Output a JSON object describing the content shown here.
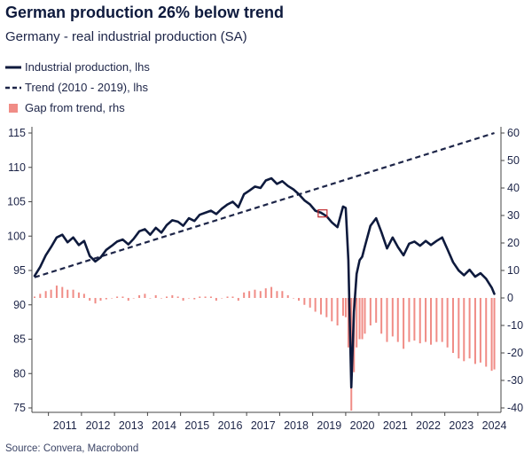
{
  "title": "German production 26% below trend",
  "subtitle": "Germany - real industrial production (SA)",
  "legend": {
    "industrial": "Industrial production, lhs",
    "trend": "Trend (2010 - 2019), lhs",
    "gap": "Gap from trend, rhs"
  },
  "source": "Source: Convera, Macrobond",
  "colors": {
    "line": "#0e1a3d",
    "trend": "#1c2447",
    "bar": "#f08c86"
  },
  "chart_data": {
    "type": "line",
    "ylim_left": [
      75,
      115
    ],
    "ylim_right": [
      -40,
      60
    ],
    "yticks_left": [
      75,
      80,
      85,
      90,
      95,
      100,
      105,
      110,
      115
    ],
    "yticks_right": [
      -40,
      -30,
      -20,
      -10,
      0,
      10,
      20,
      30,
      40,
      50,
      60
    ],
    "xticks": [
      "2011",
      "2012",
      "2013",
      "2014",
      "2015",
      "2016",
      "2017",
      "2018",
      "2019",
      "2020",
      "2021",
      "2022",
      "2023",
      "2024"
    ],
    "xlim": [
      2010.5,
      2024.7
    ],
    "trend": {
      "x": [
        2010.58,
        2024.5
      ],
      "y": [
        94.0,
        115.0
      ]
    },
    "industrial_production": {
      "x": [
        2010.58,
        2010.75,
        2010.92,
        2011.08,
        2011.25,
        2011.42,
        2011.58,
        2011.75,
        2011.92,
        2012.08,
        2012.25,
        2012.42,
        2012.58,
        2012.75,
        2012.92,
        2013.08,
        2013.25,
        2013.42,
        2013.58,
        2013.75,
        2013.92,
        2014.08,
        2014.25,
        2014.42,
        2014.58,
        2014.75,
        2014.92,
        2015.08,
        2015.25,
        2015.42,
        2015.58,
        2015.75,
        2015.92,
        2016.08,
        2016.25,
        2016.42,
        2016.58,
        2016.75,
        2016.92,
        2017.08,
        2017.25,
        2017.42,
        2017.58,
        2017.75,
        2017.92,
        2018.08,
        2018.25,
        2018.42,
        2018.58,
        2018.75,
        2018.92,
        2019.08,
        2019.25,
        2019.42,
        2019.58,
        2019.75,
        2019.92,
        2020.0,
        2020.08,
        2020.17,
        2020.25,
        2020.33,
        2020.42,
        2020.5,
        2020.58,
        2020.75,
        2020.92,
        2021.08,
        2021.25,
        2021.42,
        2021.58,
        2021.75,
        2021.92,
        2022.08,
        2022.25,
        2022.42,
        2022.58,
        2022.75,
        2022.92,
        2023.08,
        2023.25,
        2023.42,
        2023.58,
        2023.75,
        2023.92,
        2024.08,
        2024.25,
        2024.42,
        2024.5
      ],
      "y": [
        94.2,
        95.5,
        97.2,
        98.4,
        99.8,
        100.2,
        99.1,
        99.8,
        98.7,
        99.3,
        97.1,
        96.3,
        96.9,
        98.0,
        98.6,
        99.2,
        99.5,
        98.8,
        99.6,
        100.7,
        101.0,
        100.2,
        101.2,
        100.5,
        101.6,
        102.3,
        102.1,
        101.5,
        102.6,
        102.2,
        103.1,
        103.4,
        103.7,
        103.2,
        104.0,
        104.6,
        105.0,
        104.2,
        106.1,
        106.6,
        107.2,
        107.0,
        108.1,
        108.4,
        107.6,
        108.0,
        107.3,
        106.8,
        106.1,
        105.2,
        104.6,
        103.7,
        103.4,
        102.9,
        102.0,
        101.3,
        104.3,
        104.1,
        96.5,
        78.0,
        89.0,
        94.5,
        96.5,
        97.0,
        98.5,
        101.5,
        102.6,
        100.6,
        98.2,
        99.8,
        98.4,
        97.2,
        98.9,
        99.2,
        98.6,
        99.3,
        98.7,
        99.3,
        99.8,
        98.1,
        96.2,
        95.0,
        94.3,
        95.1,
        94.1,
        94.6,
        93.8,
        92.5,
        91.6
      ]
    },
    "gap_from_trend": {
      "x": [
        2010.58,
        2010.75,
        2010.92,
        2011.08,
        2011.25,
        2011.42,
        2011.58,
        2011.75,
        2011.92,
        2012.08,
        2012.25,
        2012.42,
        2012.58,
        2012.75,
        2012.92,
        2013.08,
        2013.25,
        2013.42,
        2013.58,
        2013.75,
        2013.92,
        2014.08,
        2014.25,
        2014.42,
        2014.58,
        2014.75,
        2014.92,
        2015.08,
        2015.25,
        2015.42,
        2015.58,
        2015.75,
        2015.92,
        2016.08,
        2016.25,
        2016.42,
        2016.58,
        2016.75,
        2016.92,
        2017.08,
        2017.25,
        2017.42,
        2017.58,
        2017.75,
        2017.92,
        2018.08,
        2018.25,
        2018.42,
        2018.58,
        2018.75,
        2018.92,
        2019.08,
        2019.25,
        2019.42,
        2019.58,
        2019.75,
        2019.92,
        2020.0,
        2020.08,
        2020.17,
        2020.25,
        2020.33,
        2020.42,
        2020.5,
        2020.58,
        2020.75,
        2020.92,
        2021.08,
        2021.25,
        2021.42,
        2021.58,
        2021.75,
        2021.92,
        2022.08,
        2022.25,
        2022.42,
        2022.58,
        2022.75,
        2022.92,
        2023.08,
        2023.25,
        2023.42,
        2023.58,
        2023.75,
        2023.92,
        2024.08,
        2024.25,
        2024.42,
        2024.5
      ],
      "y": [
        0.5,
        1.5,
        2.5,
        3.0,
        4.5,
        4.0,
        3.0,
        3.0,
        2.0,
        1.5,
        -1.0,
        -2.0,
        -1.0,
        -0.5,
        0.0,
        0.5,
        0.5,
        -1.0,
        0.0,
        1.0,
        1.5,
        0.0,
        1.0,
        0.0,
        0.5,
        1.0,
        0.5,
        -1.0,
        0.0,
        -0.5,
        0.5,
        0.5,
        0.5,
        -1.0,
        0.0,
        0.5,
        0.5,
        -1.0,
        2.0,
        2.5,
        3.0,
        2.5,
        3.5,
        4.0,
        2.5,
        2.5,
        1.0,
        0.0,
        -1.0,
        -2.5,
        -3.5,
        -5.0,
        -6.0,
        -7.0,
        -8.5,
        -10.0,
        -6.5,
        -7.0,
        -18.0,
        -41.0,
        -27.0,
        -18.0,
        -15.0,
        -15.0,
        -13.0,
        -10.0,
        -9.0,
        -13.0,
        -16.0,
        -14.0,
        -16.0,
        -18.5,
        -16.0,
        -15.5,
        -16.5,
        -16.0,
        -17.0,
        -16.0,
        -16.0,
        -18.0,
        -20.0,
        -22.0,
        -23.0,
        -22.0,
        -24.0,
        -23.5,
        -25.0,
        -26.5,
        -26.0
      ]
    }
  }
}
